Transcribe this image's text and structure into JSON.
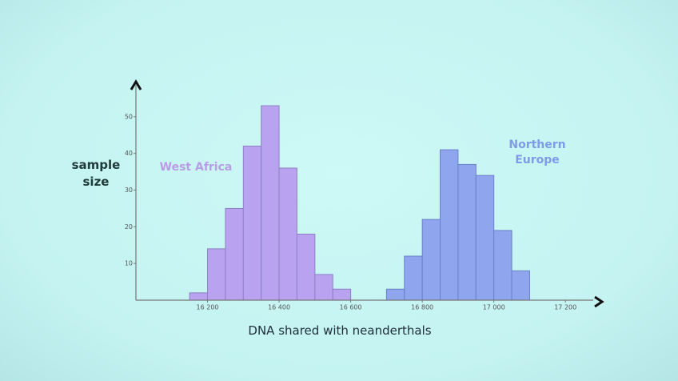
{
  "chart_data": {
    "type": "histogram",
    "x_label": "DNA shared with neanderthals",
    "y_label": "sample size",
    "xlim": [
      16000,
      17300
    ],
    "ylim": [
      0,
      60
    ],
    "xticks": [
      {
        "value": 16200,
        "label": "16 200"
      },
      {
        "value": 16400,
        "label": "16 400"
      },
      {
        "value": 16600,
        "label": "16 600"
      },
      {
        "value": 16800,
        "label": "16 800"
      },
      {
        "value": 17000,
        "label": "17 000"
      },
      {
        "value": 17200,
        "label": "17 200"
      }
    ],
    "yticks": [
      10,
      20,
      30,
      40,
      50
    ],
    "grid": false,
    "series": [
      {
        "name": "West Africa",
        "color": "#b9a3f0",
        "bins": [
          16150,
          16200,
          16250,
          16300,
          16350,
          16400,
          16450,
          16500,
          16550,
          16600
        ],
        "values": [
          2,
          14,
          25,
          42,
          53,
          36,
          18,
          7,
          3
        ]
      },
      {
        "name": "Northern Europe",
        "color": "#8fa6ee",
        "bins": [
          16700,
          16750,
          16800,
          16850,
          16900,
          16950,
          17000,
          17050,
          17100
        ],
        "values": [
          3,
          12,
          22,
          41,
          37,
          34,
          19,
          8
        ]
      }
    ]
  }
}
